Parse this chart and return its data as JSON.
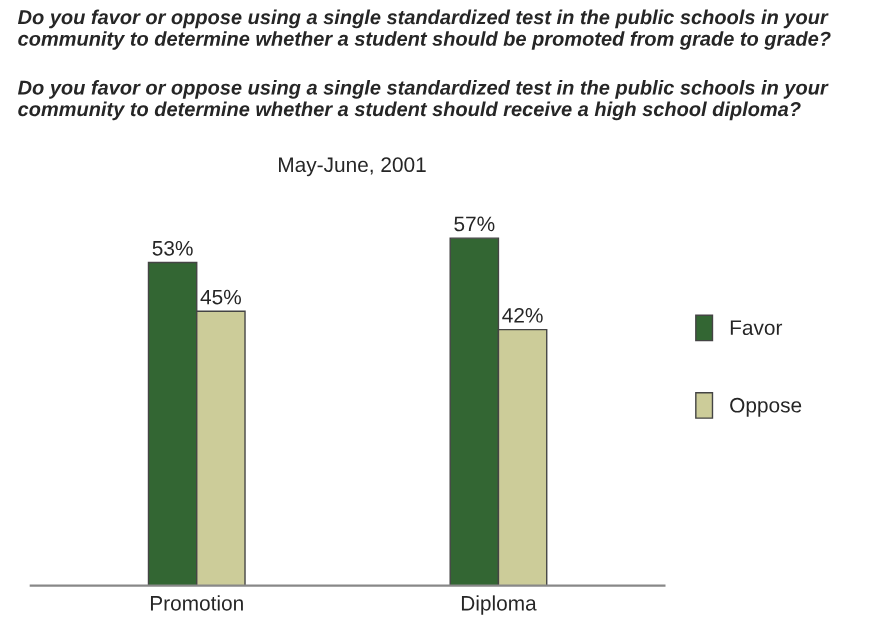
{
  "chart_data": {
    "type": "bar",
    "title": "Do you favor or oppose using a single standardized test in the public schools in your community to determine whether a student should be promoted from grade to grade?",
    "subtitle": "Do you favor or oppose using a single standardized test in the public schools in your community to determine whether a student should receive a high school diploma?",
    "annotations": [
      "May-June, 2001"
    ],
    "categories": [
      "Promotion",
      "Diploma"
    ],
    "series": [
      {
        "name": "Favor",
        "color": "#336633",
        "values": [
          53,
          57
        ],
        "value_labels": [
          "53%",
          "57%"
        ]
      },
      {
        "name": "Oppose",
        "color": "#cccc99",
        "values": [
          45,
          42
        ],
        "value_labels": [
          "45%",
          "42%"
        ]
      }
    ],
    "legend": "right",
    "tick_labels": "x",
    "grid": false
  }
}
